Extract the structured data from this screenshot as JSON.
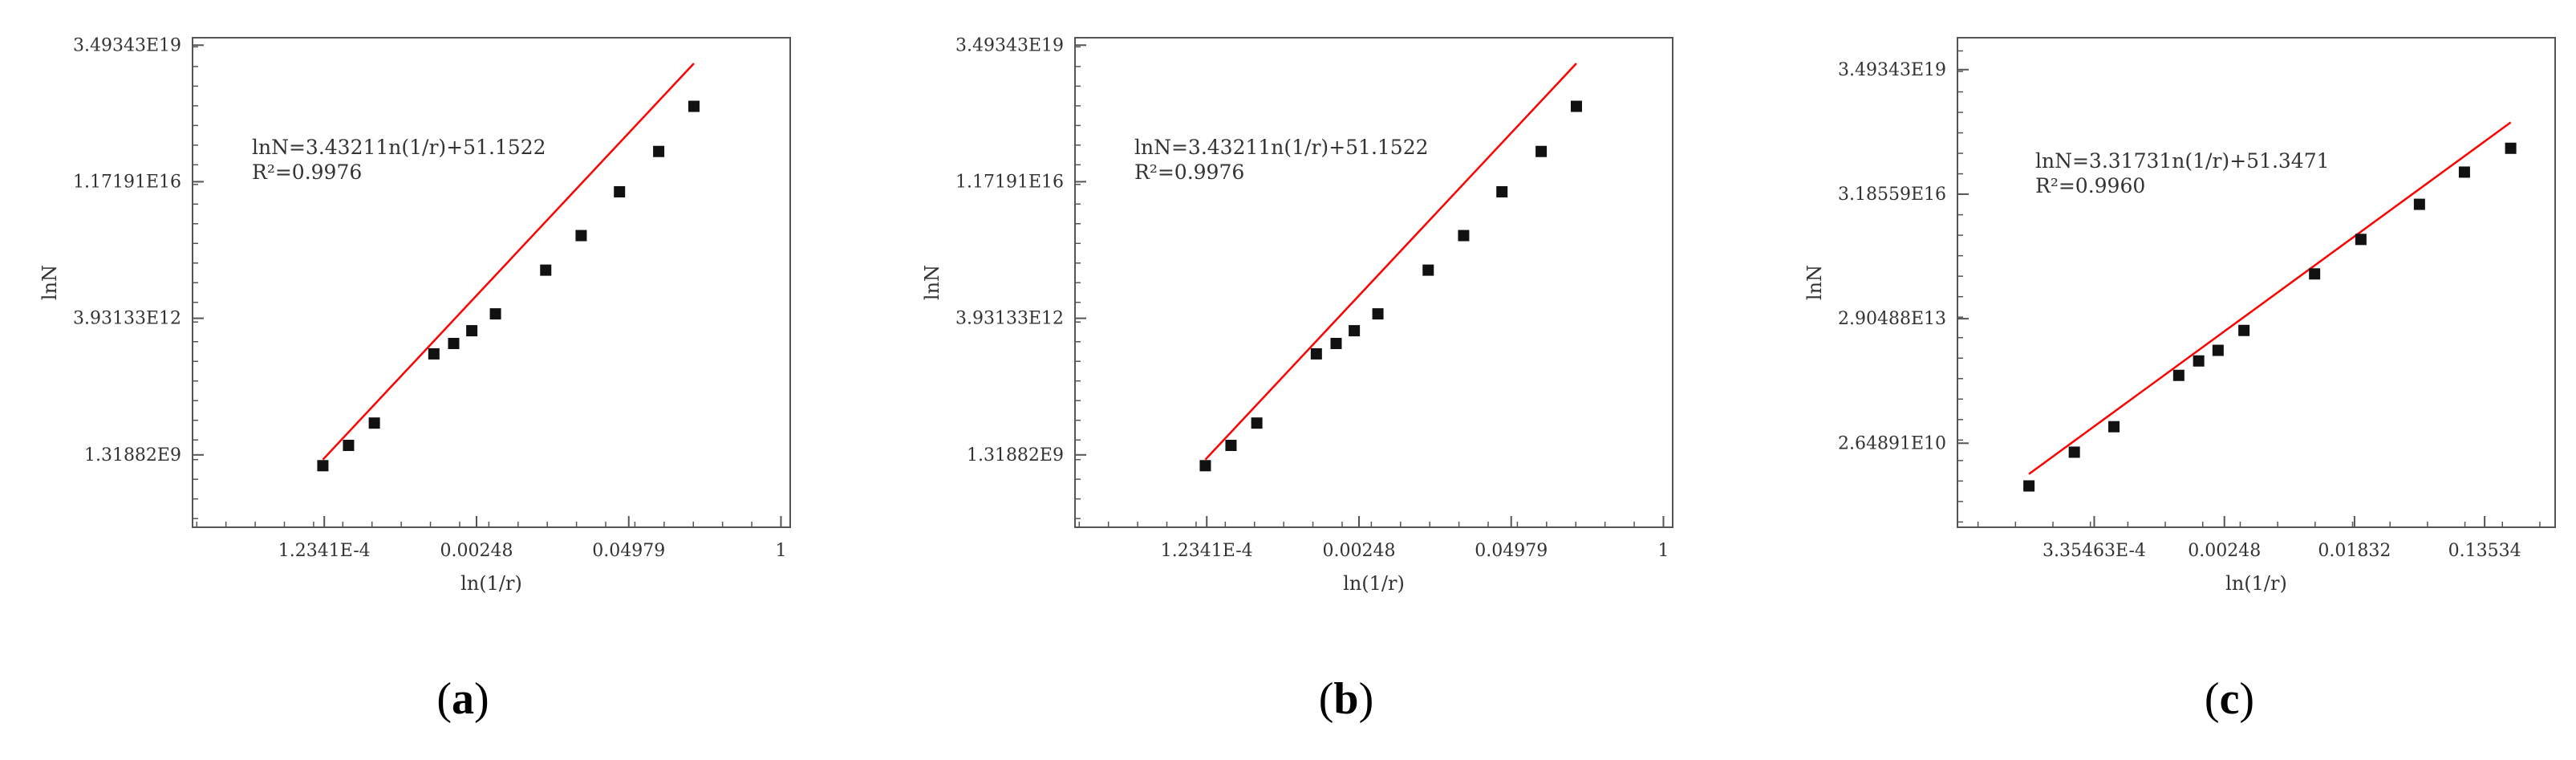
{
  "chart_data": [
    {
      "type": "scatter",
      "panel_label": "a",
      "xlabel": "ln(1/r)",
      "ylabel": "lnN",
      "x_ticks": [
        {
          "value": 0.00012341,
          "label": "1.2341E-4"
        },
        {
          "value": 0.00248,
          "label": "0.00248"
        },
        {
          "value": 0.04979,
          "label": "0.04979"
        },
        {
          "value": 1,
          "label": "1"
        }
      ],
      "y_ticks": [
        {
          "value": 1318820000.0,
          "label": "1.31882E9"
        },
        {
          "value": 3931330000000.0,
          "label": "3.93133E12"
        },
        {
          "value": 1.17191e+16,
          "label": "1.17191E16"
        },
        {
          "value": 3.49343e+19,
          "label": "3.49343E19"
        }
      ],
      "xlim": [
        9.2e-06,
        1.2
      ],
      "ylim": [
        19000000.0,
        5.4e+19
      ],
      "equation": "lnN=3.43211n(1/r)+51.1522",
      "r_squared": "R²=0.9976",
      "points": [
        {
          "x": 0.00012,
          "y": 700000000.0
        },
        {
          "x": 0.000199,
          "y": 2300000000.0
        },
        {
          "x": 0.000331,
          "y": 8500000000.0
        },
        {
          "x": 0.00107,
          "y": 490000000000.0
        },
        {
          "x": 0.00158,
          "y": 900000000000.0
        },
        {
          "x": 0.00226,
          "y": 1900000000000.0
        },
        {
          "x": 0.0036,
          "y": 5100000000000.0
        },
        {
          "x": 0.0097,
          "y": 66000000000000.0
        },
        {
          "x": 0.0195,
          "y": 500000000000000.0
        },
        {
          "x": 0.0415,
          "y": 6500000000000000.0
        },
        {
          "x": 0.0899,
          "y": 6.9e+16
        },
        {
          "x": 0.1799,
          "y": 9.7e+17
        }
      ],
      "fit_line": {
        "x": [
          0.00012,
          0.1799
        ],
        "y": [
          1000000000.0,
          1.2e+19
        ]
      },
      "colors": {
        "points": "#111111",
        "fit_line": "#ff0000",
        "frame": "#555555"
      }
    },
    {
      "type": "scatter",
      "panel_label": "b",
      "xlabel": "ln(1/r)",
      "ylabel": "lnN",
      "x_ticks": [
        {
          "value": 0.00012341,
          "label": "1.2341E-4"
        },
        {
          "value": 0.00248,
          "label": "0.00248"
        },
        {
          "value": 0.04979,
          "label": "0.04979"
        },
        {
          "value": 1,
          "label": "1"
        }
      ],
      "y_ticks": [
        {
          "value": 1318820000.0,
          "label": "1.31882E9"
        },
        {
          "value": 3931330000000.0,
          "label": "3.93133E12"
        },
        {
          "value": 1.17191e+16,
          "label": "1.17191E16"
        },
        {
          "value": 3.49343e+19,
          "label": "3.49343E19"
        }
      ],
      "xlim": [
        9.2e-06,
        1.2
      ],
      "ylim": [
        19000000.0,
        5.4e+19
      ],
      "equation": "lnN=3.43211n(1/r)+51.1522",
      "r_squared": "R²=0.9976",
      "points": [
        {
          "x": 0.00012,
          "y": 700000000.0
        },
        {
          "x": 0.000199,
          "y": 2300000000.0
        },
        {
          "x": 0.000331,
          "y": 8500000000.0
        },
        {
          "x": 0.00107,
          "y": 490000000000.0
        },
        {
          "x": 0.00158,
          "y": 900000000000.0
        },
        {
          "x": 0.00226,
          "y": 1900000000000.0
        },
        {
          "x": 0.0036,
          "y": 5100000000000.0
        },
        {
          "x": 0.0097,
          "y": 66000000000000.0
        },
        {
          "x": 0.0195,
          "y": 500000000000000.0
        },
        {
          "x": 0.0415,
          "y": 6500000000000000.0
        },
        {
          "x": 0.0899,
          "y": 6.9e+16
        },
        {
          "x": 0.1799,
          "y": 9.7e+17
        }
      ],
      "fit_line": {
        "x": [
          0.00012,
          0.1799
        ],
        "y": [
          1000000000.0,
          1.2e+19
        ]
      },
      "colors": {
        "points": "#111111",
        "fit_line": "#ff0000",
        "frame": "#555555"
      }
    },
    {
      "type": "scatter",
      "panel_label": "c",
      "xlabel": "ln(1/r)",
      "ylabel": "lnN",
      "x_ticks": [
        {
          "value": 0.000335463,
          "label": "3.35463E-4"
        },
        {
          "value": 0.00248,
          "label": "0.00248"
        },
        {
          "value": 0.01832,
          "label": "0.01832"
        },
        {
          "value": 0.13534,
          "label": "0.13534"
        }
      ],
      "y_ticks": [
        {
          "value": 26489100000.0,
          "label": "2.64891E10"
        },
        {
          "value": 29048800000000.0,
          "label": "2.90488E13"
        },
        {
          "value": 3.18559e+16,
          "label": "3.18559E16"
        },
        {
          "value": 3.49343e+19,
          "label": "3.49343E19"
        }
      ],
      "xlim": [
        4.1e-05,
        0.4
      ],
      "ylim": [
        235000000.0,
        2.1e+20
      ],
      "equation": "lnN=3.31731n(1/r)+51.3471",
      "r_squared": "R²=0.9960",
      "points": [
        {
          "x": 0.000123,
          "y": 2400000000.0
        },
        {
          "x": 0.000247,
          "y": 16000000000.0
        },
        {
          "x": 0.000454,
          "y": 67000000000.0
        },
        {
          "x": 0.00123,
          "y": 1200000000000.0
        },
        {
          "x": 0.00167,
          "y": 2700000000000.0
        },
        {
          "x": 0.00225,
          "y": 4900000000000.0
        },
        {
          "x": 0.00335,
          "y": 15000000000000.0
        },
        {
          "x": 0.00992,
          "y": 360000000000000.0
        },
        {
          "x": 0.0202,
          "y": 2500000000000000.0
        },
        {
          "x": 0.0497,
          "y": 1.8e+16
        },
        {
          "x": 0.0992,
          "y": 1.1e+17
        },
        {
          "x": 0.202,
          "y": 4.2e+17
        }
      ],
      "fit_line": {
        "x": [
          0.000123,
          0.202
        ],
        "y": [
          4700000000.0,
          1.8e+18
        ]
      },
      "colors": {
        "points": "#111111",
        "fit_line": "#ff0000",
        "frame": "#555555"
      }
    }
  ],
  "captions": [
    {
      "open": "(",
      "letter": "a",
      "close": ")"
    },
    {
      "open": "(",
      "letter": "b",
      "close": ")"
    },
    {
      "open": "(",
      "letter": "c",
      "close": ")"
    }
  ]
}
